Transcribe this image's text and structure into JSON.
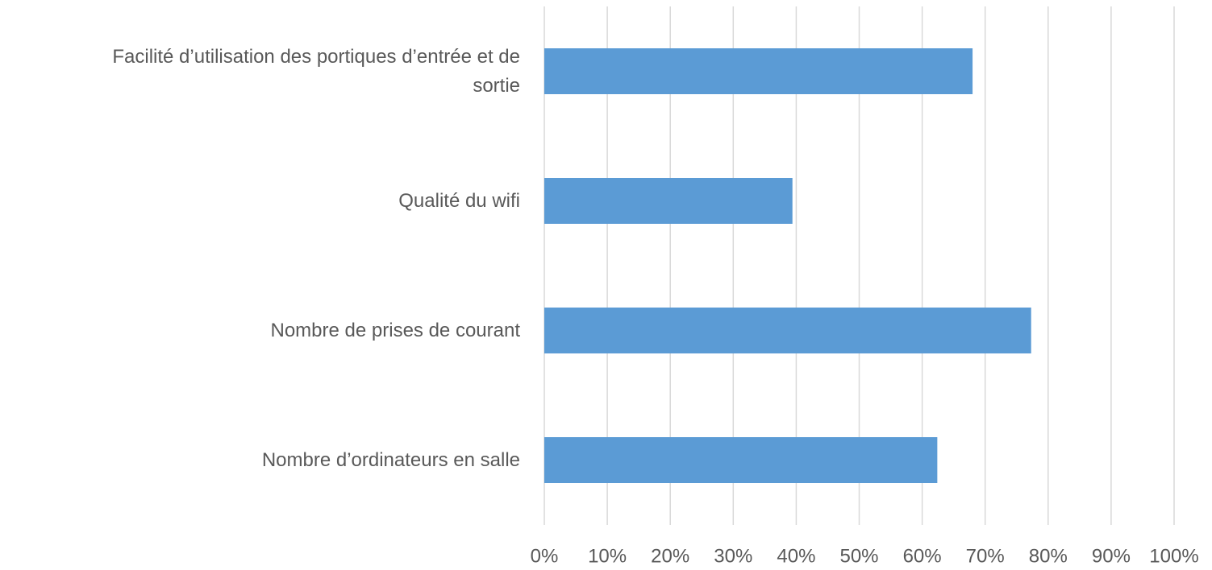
{
  "chart_data": {
    "type": "bar",
    "orientation": "horizontal",
    "categories": [
      "Facilité d’utilisation des portiques d’entrée et de sortie",
      "Qualité du wifi",
      "Nombre de prises de courant",
      "Nombre d’ordinateurs en salle"
    ],
    "values": [
      68,
      39.4,
      77.3,
      62.4
    ],
    "color": "#5b9bd5",
    "xlim": [
      0,
      100
    ],
    "xticks": [
      {
        "value": 0,
        "label": "0%"
      },
      {
        "value": 10,
        "label": "10%"
      },
      {
        "value": 20,
        "label": "20%"
      },
      {
        "value": 30,
        "label": "30%"
      },
      {
        "value": 40,
        "label": "40%"
      },
      {
        "value": 50,
        "label": "50%"
      },
      {
        "value": 60,
        "label": "60%"
      },
      {
        "value": 70,
        "label": "70%"
      },
      {
        "value": 80,
        "label": "80%"
      },
      {
        "value": 90,
        "label": "90%"
      },
      {
        "value": 100,
        "label": "100%"
      }
    ],
    "grid": true
  }
}
